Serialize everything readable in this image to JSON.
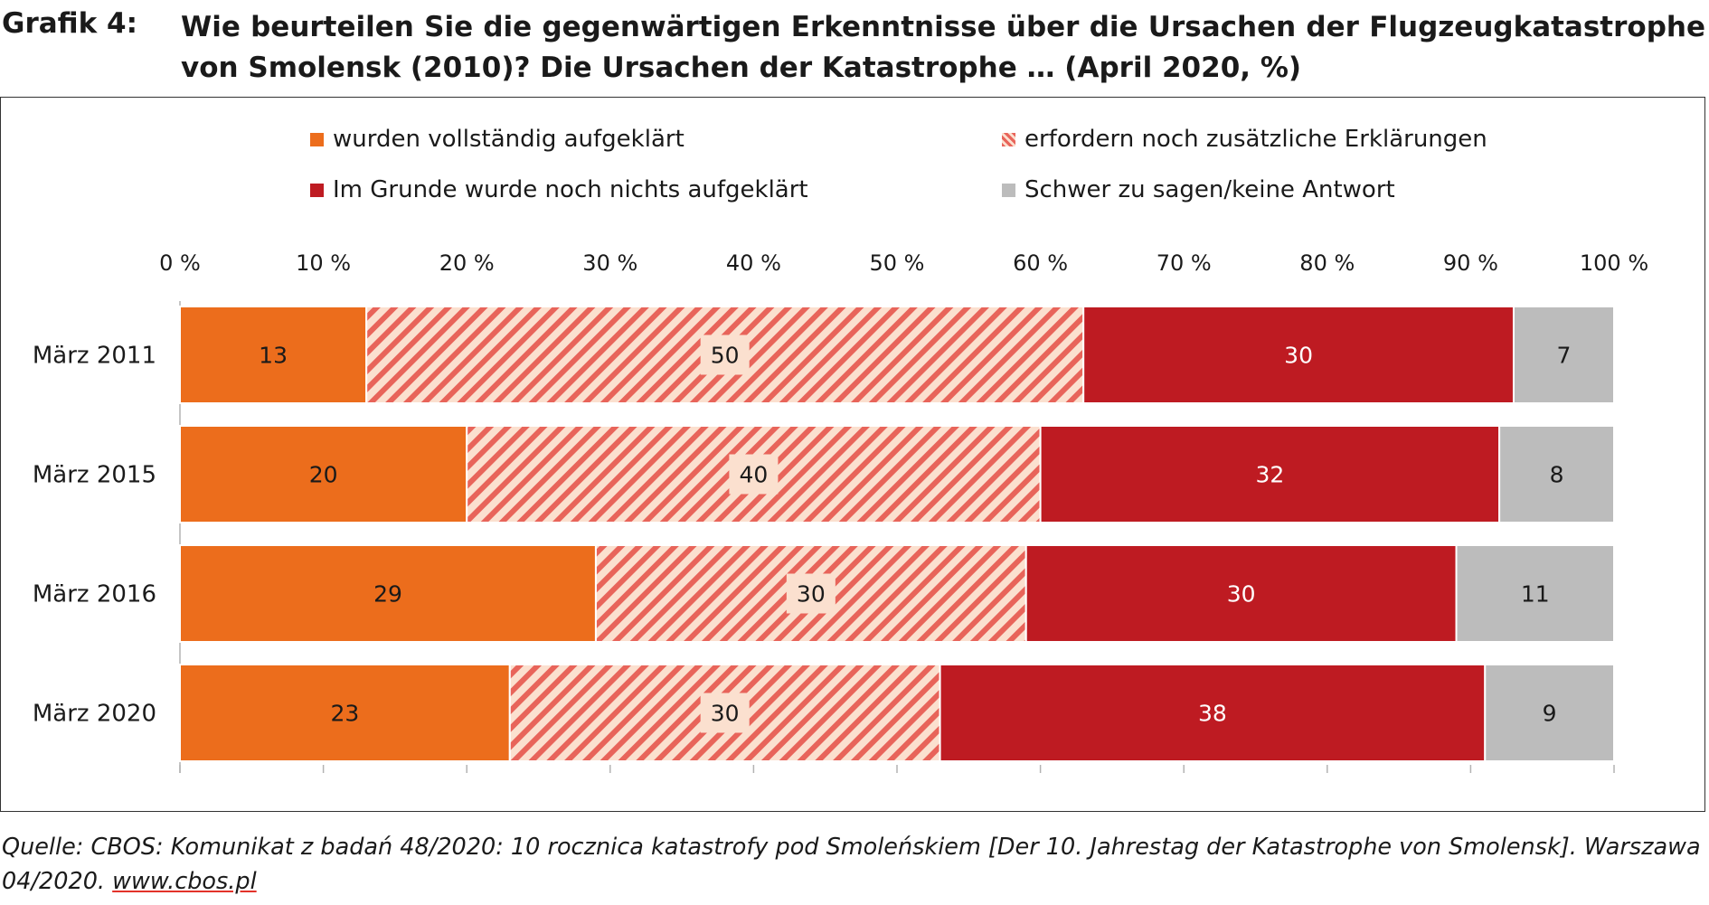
{
  "header": {
    "label": "Grafik 4:",
    "title": "Wie beurteilen Sie die gegenwärtigen Erkenntnisse über die Ursachen der Flugzeugkatastrophe von Smolensk (2010)? Die Ursachen der Katastrophe … (April 2020, %)"
  },
  "colors": {
    "orange": "#ec6d1c",
    "hatch_red": "#e8645a",
    "hatch_bg": "#fbe0cf",
    "dark_red": "#be1b22",
    "gray": "#bcbcbc"
  },
  "chart_data": {
    "type": "bar",
    "orientation": "horizontal",
    "stacked": true,
    "title": "Wie beurteilen Sie die gegenwärtigen Erkenntnisse über die Ursachen der Flugzeugkatastrophe von Smolensk (2010)? Die Ursachen der Katastrophe … (April 2020, %)",
    "categories": [
      "März 2011",
      "März 2015",
      "März 2016",
      "März 2020"
    ],
    "series": [
      {
        "name": "wurden vollständig aufgeklärt",
        "values": [
          13,
          20,
          29,
          23
        ],
        "style": "solid",
        "color": "#ec6d1c",
        "label_color": "#1a1a1a"
      },
      {
        "name": "erfordern noch zusätzliche Erklärungen",
        "values": [
          50,
          40,
          30,
          30
        ],
        "style": "hatched",
        "color": "#e8645a",
        "label_color": "#1a1a1a"
      },
      {
        "name": "Im Grunde wurde noch nichts aufgeklärt",
        "values": [
          30,
          32,
          30,
          38
        ],
        "style": "solid",
        "color": "#be1b22",
        "label_color": "#ffffff"
      },
      {
        "name": "Schwer zu sagen/keine Antwort",
        "values": [
          7,
          8,
          11,
          9
        ],
        "style": "solid",
        "color": "#bcbcbc",
        "label_color": "#1a1a1a"
      }
    ],
    "xlim": [
      0,
      100
    ],
    "ticks": [
      0,
      10,
      20,
      30,
      40,
      50,
      60,
      70,
      80,
      90,
      100
    ],
    "tick_labels": [
      "0 %",
      "10 %",
      "20 %",
      "30 %",
      "40 %",
      "50 %",
      "60 %",
      "70 %",
      "80 %",
      "90 %",
      "100 %"
    ],
    "legend_position": "top",
    "grid": false
  },
  "source": {
    "text": "Quelle: CBOS: Komunikat z badań 48/2020: 10 rocznica katastrofy pod Smoleńskiem [Der 10. Jahrestag der Katastrophe von Smolensk]. Warszawa 04/2020. ",
    "link": "www.cbos.pl"
  }
}
